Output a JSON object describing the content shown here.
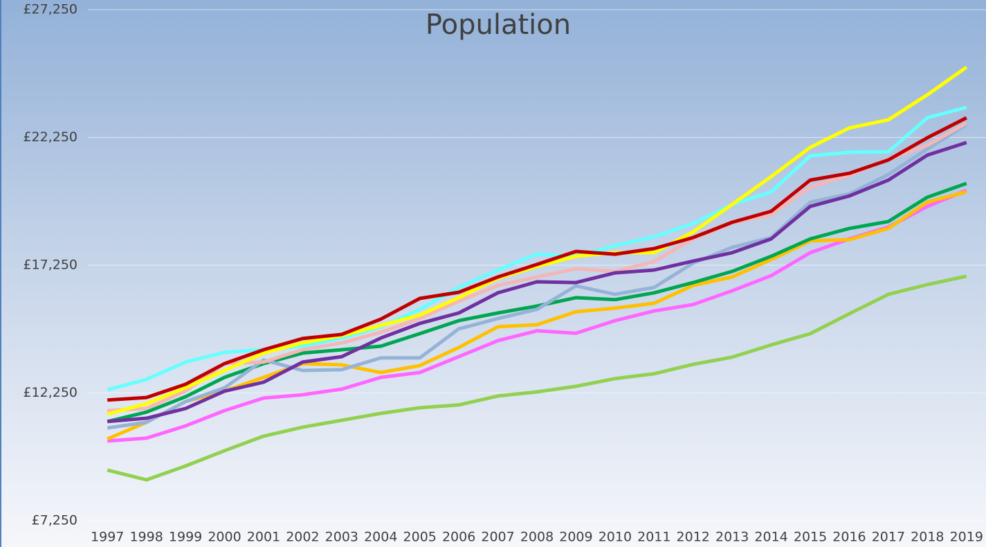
{
  "chart_data": {
    "type": "line",
    "title": "Population",
    "categories": [
      "1997",
      "1998",
      "1999",
      "2000",
      "2001",
      "2002",
      "2003",
      "2004",
      "2005",
      "2006",
      "2007",
      "2008",
      "2009",
      "2010",
      "2011",
      "2012",
      "2013",
      "2014",
      "2015",
      "2016",
      "2017",
      "2018",
      "2019"
    ],
    "ylim": [
      7250,
      27250
    ],
    "yticks": [
      {
        "value": 7250,
        "label": "£7,250"
      },
      {
        "value": 12250,
        "label": "£12,250"
      },
      {
        "value": 17250,
        "label": "£17,250"
      },
      {
        "value": 22250,
        "label": "£22,250"
      },
      {
        "value": 27250,
        "label": "£27,250"
      }
    ],
    "grid": true,
    "series": [
      {
        "color": "#92d050",
        "values": [
          9230,
          8850,
          9390,
          9990,
          10560,
          10910,
          11180,
          11450,
          11670,
          11780,
          12130,
          12290,
          12510,
          12810,
          13000,
          13370,
          13650,
          14130,
          14570,
          15350,
          16110,
          16490,
          16820
        ]
      },
      {
        "color": "#ff66ff",
        "values": [
          10370,
          10480,
          10960,
          11560,
          12050,
          12180,
          12400,
          12860,
          13050,
          13670,
          14300,
          14680,
          14590,
          15080,
          15460,
          15710,
          16250,
          16840,
          17740,
          18280,
          18740,
          19550,
          20180
        ]
      },
      {
        "color": "#ffc000",
        "values": [
          10450,
          11100,
          11910,
          12320,
          12860,
          13400,
          13350,
          13050,
          13320,
          14030,
          14840,
          14920,
          15430,
          15570,
          15760,
          16460,
          16790,
          17470,
          18200,
          18250,
          18690,
          19720,
          20120
        ]
      },
      {
        "color": "#00a651",
        "values": [
          11130,
          11500,
          12100,
          12860,
          13400,
          13810,
          13940,
          14080,
          14570,
          15080,
          15380,
          15650,
          15980,
          15900,
          16170,
          16570,
          17010,
          17600,
          18280,
          18690,
          18960,
          19910,
          20450
        ]
      },
      {
        "color": "#95b3d7",
        "values": [
          10880,
          11100,
          11910,
          12450,
          13540,
          13130,
          13160,
          13620,
          13620,
          14760,
          15160,
          15520,
          16440,
          16110,
          16380,
          17330,
          17950,
          18330,
          19720,
          20040,
          20800,
          21800,
          22750
        ]
      },
      {
        "color": "#f4b6b6",
        "values": [
          11560,
          11640,
          12320,
          13400,
          13460,
          13940,
          14210,
          14620,
          15160,
          15840,
          16460,
          16790,
          17110,
          17010,
          17390,
          18280,
          18900,
          19230,
          20310,
          20770,
          21400,
          21940,
          22810
        ]
      },
      {
        "color": "#7030a0",
        "values": [
          11130,
          11260,
          11640,
          12320,
          12670,
          13460,
          13670,
          14400,
          14970,
          15380,
          16170,
          16600,
          16570,
          16950,
          17060,
          17410,
          17740,
          18280,
          19550,
          19960,
          20580,
          21560,
          22050
        ]
      },
      {
        "color": "#66ffff",
        "values": [
          12370,
          12780,
          13460,
          13840,
          13940,
          14080,
          14400,
          14840,
          15520,
          16380,
          17060,
          17680,
          17600,
          18010,
          18360,
          18880,
          19630,
          20120,
          21530,
          21670,
          21690,
          23020,
          23430
        ]
      },
      {
        "color": "#ffff00",
        "values": [
          11420,
          11830,
          12450,
          13130,
          13810,
          14210,
          14490,
          14890,
          15300,
          15980,
          16740,
          17200,
          17600,
          17740,
          17740,
          18550,
          19630,
          20720,
          21860,
          22620,
          22940,
          23920,
          25000
        ]
      },
      {
        "color": "#c00000",
        "values": [
          11970,
          12070,
          12590,
          13400,
          13940,
          14380,
          14540,
          15140,
          15950,
          16190,
          16790,
          17280,
          17790,
          17680,
          17900,
          18330,
          18930,
          19360,
          20580,
          20850,
          21370,
          22240,
          23020
        ]
      }
    ]
  }
}
